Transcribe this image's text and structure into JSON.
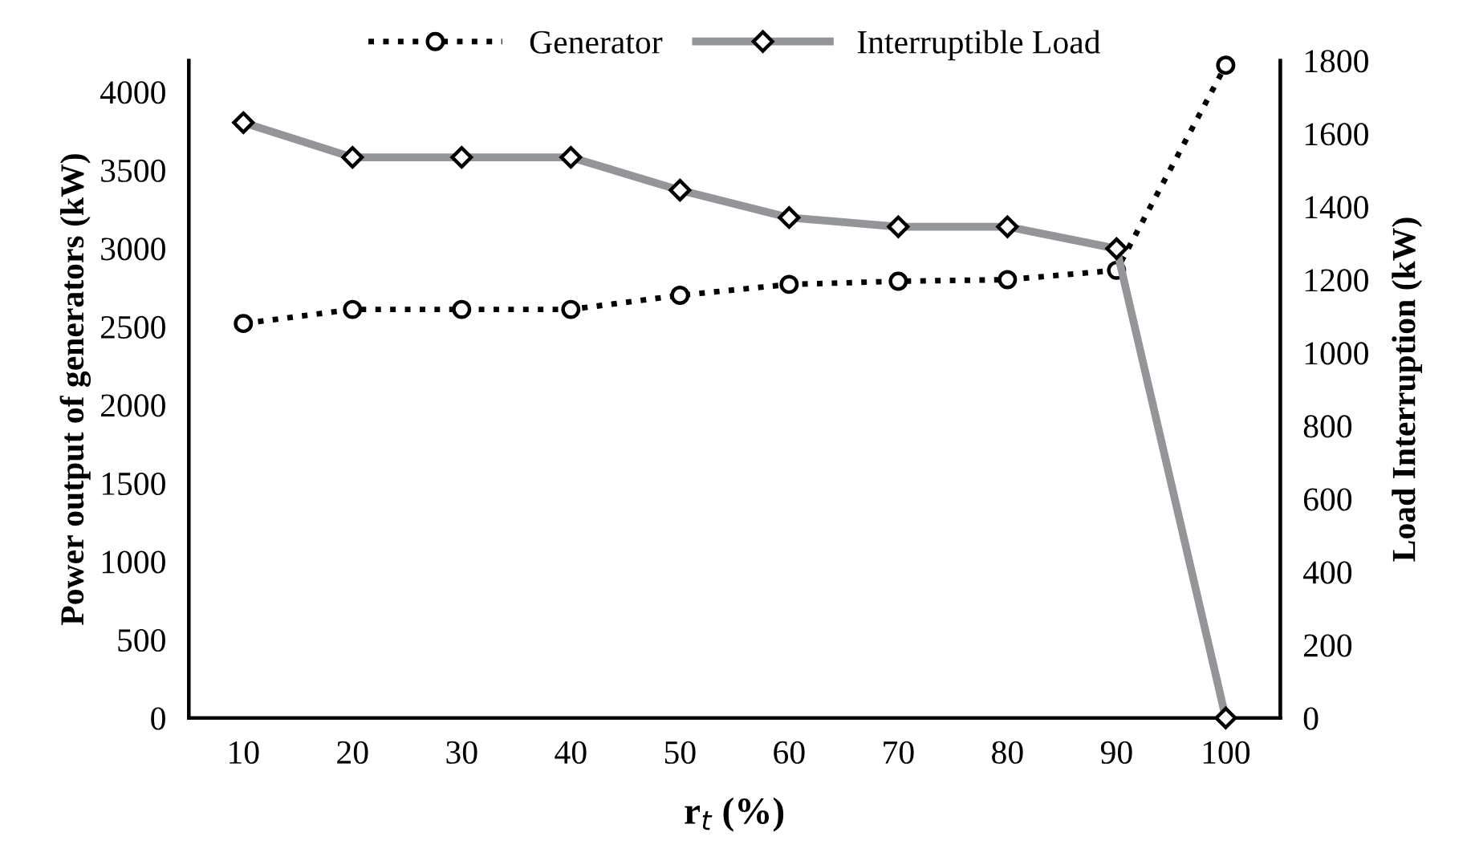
{
  "chart_data": {
    "type": "line",
    "categories": [
      "10",
      "20",
      "30",
      "40",
      "50",
      "60",
      "70",
      "80",
      "90",
      "100"
    ],
    "xlabel": "r$_{t}$ (%)",
    "ylabel": "Power output of generators (kW)",
    "y2label": "Load Interruption (kW)",
    "ylim": [
      0,
      4200
    ],
    "yticks": [
      0,
      500,
      1000,
      1500,
      2000,
      2500,
      3000,
      3500,
      4000
    ],
    "y2lim": [
      0,
      1800
    ],
    "y2ticks": [
      0,
      200,
      400,
      600,
      800,
      1000,
      1200,
      1400,
      1600,
      1800
    ],
    "grid": false,
    "legend": "top",
    "series": [
      {
        "name": "Generator",
        "color": "#000000",
        "marker": "circle",
        "line_style": "dotted",
        "values": [
          2520,
          2610,
          2610,
          2610,
          2700,
          2770,
          2790,
          2800,
          2860,
          4170
        ]
      },
      {
        "name": "Interruptible Load",
        "color": "#939598",
        "marker": "diamond",
        "line_style": "solid",
        "axis": "y2",
        "values": [
          1630,
          1535,
          1535,
          1535,
          1445,
          1370,
          1345,
          1345,
          1285,
          0
        ]
      }
    ]
  }
}
